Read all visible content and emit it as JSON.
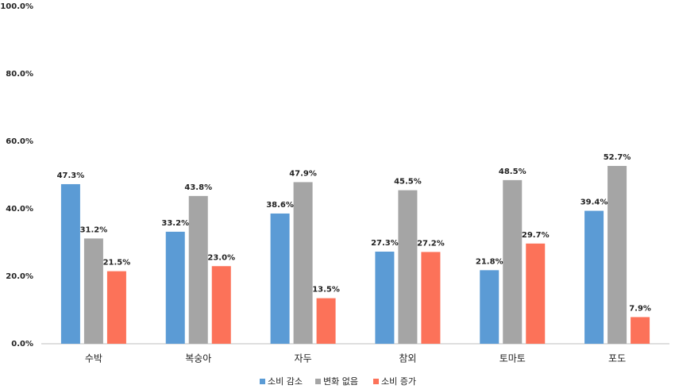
{
  "chart_data": {
    "type": "bar",
    "categories": [
      "수박",
      "복숭아",
      "자두",
      "참외",
      "토마토",
      "포도"
    ],
    "series": [
      {
        "name": "소비 감소",
        "color": "#5b9bd5",
        "values": [
          47.3,
          33.2,
          38.6,
          27.3,
          21.8,
          39.4
        ],
        "value_labels": [
          "47.3%",
          "33.2%",
          "38.6%",
          "27.3%",
          "21.8%",
          "39.4%"
        ]
      },
      {
        "name": "변화 없음",
        "color": "#a5a5a5",
        "values": [
          31.2,
          43.8,
          47.9,
          45.5,
          48.5,
          52.7
        ],
        "value_labels": [
          "31.2%",
          "43.8%",
          "47.9%",
          "45.5%",
          "48.5%",
          "52.7%"
        ]
      },
      {
        "name": "소비 증가",
        "color": "#fc7259",
        "values": [
          21.5,
          23.0,
          13.5,
          27.2,
          29.7,
          7.9
        ],
        "value_labels": [
          "21.5%",
          "23.0%",
          "13.5%",
          "27.2%",
          "29.7%",
          "7.9%"
        ]
      }
    ],
    "ylim": [
      0,
      100
    ],
    "yticks": [
      {
        "value": 0,
        "label": "0.0%"
      },
      {
        "value": 20,
        "label": "20.0%"
      },
      {
        "value": 40,
        "label": "40.0%"
      },
      {
        "value": 60,
        "label": "60.0%"
      },
      {
        "value": 80,
        "label": "80.0%"
      },
      {
        "value": 100,
        "label": "100.0%"
      }
    ],
    "grid": false,
    "legend": "bottom"
  }
}
